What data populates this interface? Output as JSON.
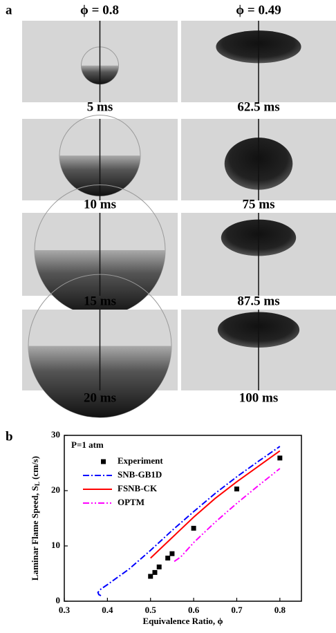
{
  "panel_a": {
    "label": "a",
    "columns": [
      {
        "title": "ϕ = 0.8",
        "frames": [
          "5 ms",
          "10 ms",
          "15 ms",
          "20 ms"
        ]
      },
      {
        "title": "ϕ = 0.49",
        "frames": [
          "62.5 ms",
          "75 ms",
          "87.5 ms",
          "100 ms"
        ]
      }
    ]
  },
  "panel_b_label": "b",
  "chart_data": {
    "type": "line",
    "annotation": "P=1 atm",
    "xlabel": "Equivalence Ratio, ϕ",
    "ylabel": [
      "Laminar Flame Speed, S",
      "L",
      " (cm/s)"
    ],
    "xlim": [
      0.3,
      0.85
    ],
    "xticks": [
      0.3,
      0.4,
      0.5,
      0.6,
      0.7,
      0.8
    ],
    "ylim": [
      0,
      30
    ],
    "yticks": [
      0,
      10,
      20,
      30
    ],
    "series": [
      {
        "name": "Experiment",
        "color": "#000000",
        "mode": "markers",
        "x": [
          0.5,
          0.51,
          0.52,
          0.54,
          0.55,
          0.6,
          0.7,
          0.8
        ],
        "values": [
          4.5,
          5.2,
          6.2,
          7.8,
          8.6,
          13.2,
          20.3,
          25.9
        ]
      },
      {
        "name": "SNB-GB1D",
        "color": "#0000ff",
        "mode": "line",
        "dash": "dash-dot",
        "x": [
          0.385,
          0.38,
          0.378,
          0.385,
          0.4,
          0.45,
          0.5,
          0.55,
          0.6,
          0.65,
          0.7,
          0.75,
          0.8
        ],
        "values": [
          1.0,
          1.2,
          1.6,
          2.2,
          3.0,
          5.8,
          9.2,
          12.8,
          16.2,
          19.5,
          22.5,
          25.3,
          28.0
        ]
      },
      {
        "name": "FSNB-CK",
        "color": "#ff0000",
        "mode": "line",
        "dash": "solid",
        "x": [
          0.5,
          0.55,
          0.6,
          0.65,
          0.7,
          0.75,
          0.8
        ],
        "values": [
          7.8,
          11.5,
          15.2,
          18.6,
          21.6,
          24.4,
          27.2
        ]
      },
      {
        "name": "OPTM",
        "color": "#ff00ff",
        "mode": "line",
        "dash": "dash-dot-dot",
        "x": [
          0.555,
          0.57,
          0.6,
          0.65,
          0.7,
          0.75,
          0.8
        ],
        "values": [
          7.2,
          8.0,
          10.6,
          14.3,
          17.7,
          20.9,
          24.0
        ]
      }
    ]
  }
}
